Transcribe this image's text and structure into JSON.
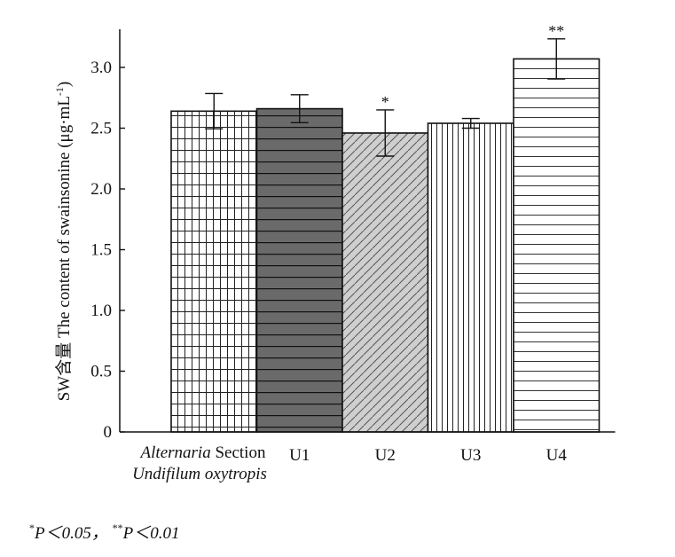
{
  "chart_data": {
    "type": "bar",
    "ylabel_prefix": "SW含量 The content of swainsonine (μg·mL",
    "ylabel_sup": "-1",
    "ylabel_suffix": ")",
    "ylim": [
      0,
      3.3
    ],
    "yticks": [
      "0",
      "0.5",
      "1.0",
      "1.5",
      "2.0",
      "2.5",
      "3.0"
    ],
    "ytick_values": [
      0,
      0.5,
      1.0,
      1.5,
      2.0,
      2.5,
      3.0
    ],
    "grid": false,
    "categories": [
      {
        "line1_italic": "Alternaria",
        "line1_rest": " Section",
        "line2_italic": "Undifilum oxytropis"
      },
      {
        "label": "U1"
      },
      {
        "label": "U2"
      },
      {
        "label": "U3"
      },
      {
        "label": "U4"
      }
    ],
    "values": [
      2.64,
      2.66,
      2.46,
      2.54,
      3.07
    ],
    "errors": [
      0.145,
      0.115,
      0.19,
      0.04,
      0.165
    ],
    "significance": [
      "",
      "",
      "*",
      "",
      "**"
    ],
    "patterns": [
      "grid",
      "dark-horizontal",
      "diagonal",
      "vertical",
      "horizontal"
    ]
  },
  "footnote": {
    "sig1_mark": "*",
    "sig1_text": "P＜0.05，",
    "sig2_mark": "**",
    "sig2_text": "P＜0.01"
  }
}
